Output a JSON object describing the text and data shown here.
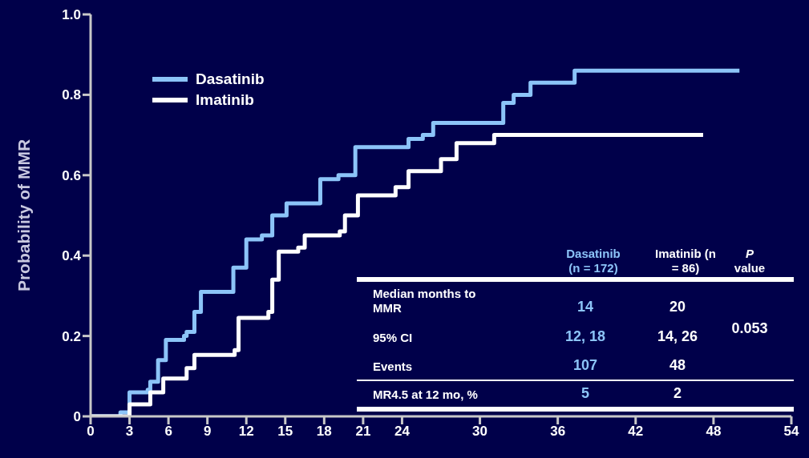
{
  "chart_data": {
    "type": "step",
    "ylabel": "Probability of MMR",
    "xlim": [
      0,
      54
    ],
    "xticks": [
      0,
      3,
      6,
      9,
      12,
      15,
      18,
      21,
      24,
      30,
      36,
      42,
      48,
      54
    ],
    "ylim": [
      0,
      1
    ],
    "yticks": [
      0,
      0.2,
      0.4,
      0.6,
      0.8,
      {
        "value": 1,
        "label": "1.0"
      }
    ],
    "grid": false,
    "legend": "top left",
    "line_style": "solid",
    "series": [
      {
        "name": "Dasatinib",
        "color": "#8cc4f8",
        "x": [
          0,
          2.3,
          3,
          4.4,
          4.6,
          5.2,
          5.8,
          7.2,
          7.4,
          8,
          8.5,
          10.3,
          11,
          12,
          13.2,
          14,
          15.1,
          16.7,
          17.7,
          19.1,
          20.4,
          22.9,
          24.5,
          25.6,
          26.4,
          31.5,
          31.8,
          32.6,
          33.9,
          37.3,
          50
        ],
        "values": [
          0,
          0.01,
          0.06,
          0.066,
          0.086,
          0.14,
          0.19,
          0.2,
          0.21,
          0.26,
          0.31,
          0.31,
          0.37,
          0.44,
          0.45,
          0.5,
          0.53,
          0.53,
          0.59,
          0.6,
          0.67,
          0.67,
          0.69,
          0.7,
          0.73,
          0.73,
          0.78,
          0.8,
          0.83,
          0.86,
          0.86
        ]
      },
      {
        "name": "Imatinib",
        "color": "#ffffff",
        "x": [
          0,
          3,
          4.6,
          5.6,
          7.4,
          8,
          11.1,
          11.4,
          13.7,
          14,
          14.5,
          16,
          16.5,
          19.2,
          19.6,
          20.6,
          22,
          23.5,
          24.5,
          26.4,
          27,
          28.2,
          30.9,
          31.1,
          47.2
        ],
        "values": [
          0,
          0.03,
          0.06,
          0.094,
          0.12,
          0.153,
          0.165,
          0.245,
          0.26,
          0.34,
          0.41,
          0.42,
          0.45,
          0.46,
          0.5,
          0.55,
          0.55,
          0.57,
          0.61,
          0.61,
          0.64,
          0.68,
          0.68,
          0.7,
          0.7
        ]
      }
    ],
    "annotations": [
      "Dasatinib (n = 172)",
      "Imatinib (n = 86)",
      "P value",
      "Median months to MMR",
      "14",
      "20",
      "95% CI",
      "12, 18",
      "14, 26",
      "0.053",
      "Events",
      "107",
      "48",
      "MR4.5 at 12 mo, %",
      "5",
      "2"
    ]
  }
}
